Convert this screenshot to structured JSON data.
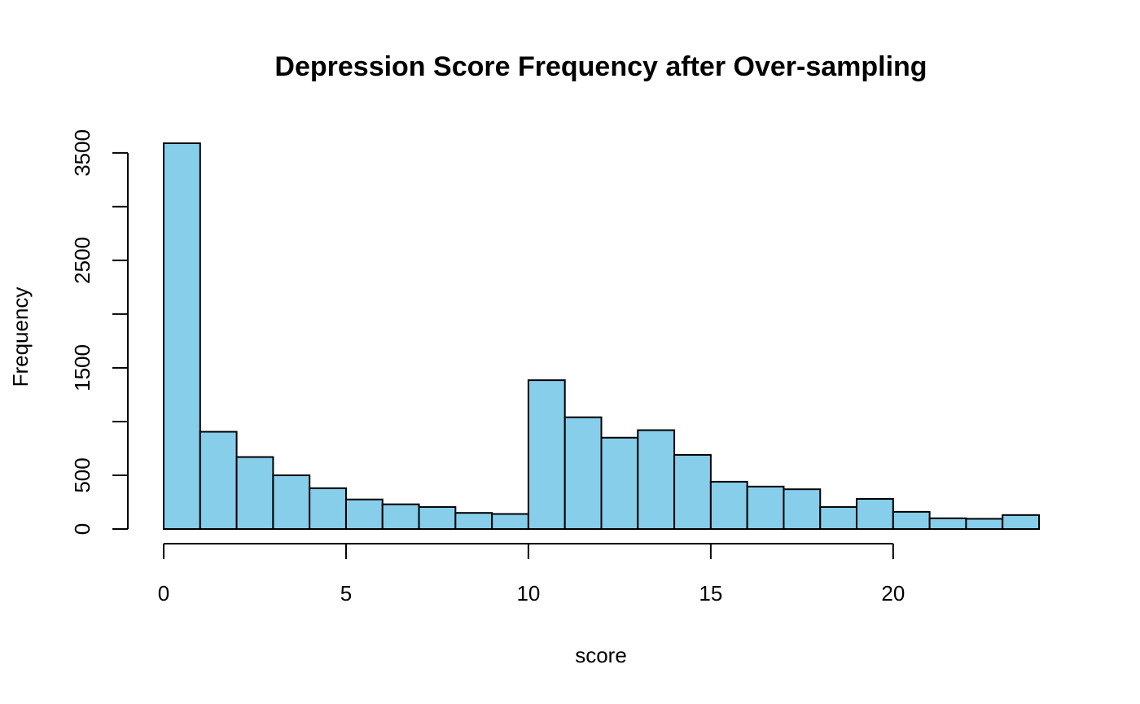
{
  "chart_data": {
    "type": "bar",
    "title": "Depression Score Frequency after Over-sampling",
    "xlabel": "score",
    "ylabel": "Frequency",
    "bar_color": "#87CEEB",
    "bin_width": 1,
    "bin_start": 0,
    "values": [
      3590,
      905,
      670,
      500,
      380,
      275,
      230,
      205,
      150,
      140,
      1385,
      1040,
      850,
      920,
      690,
      440,
      395,
      370,
      205,
      280,
      160,
      100,
      95,
      130
    ],
    "xlim": [
      0,
      24
    ],
    "ylim": [
      0,
      3600
    ],
    "x_ticks": [
      0,
      5,
      10,
      15,
      20
    ],
    "x_tick_labels": [
      "0",
      "5",
      "10",
      "15",
      "20"
    ],
    "y_ticks": [
      0,
      500,
      1000,
      1500,
      2000,
      2500,
      3000,
      3500
    ],
    "y_tick_labels": [
      "0",
      "500",
      "",
      "1500",
      "",
      "2500",
      "",
      "3500"
    ],
    "grid": false,
    "legend": "none"
  }
}
